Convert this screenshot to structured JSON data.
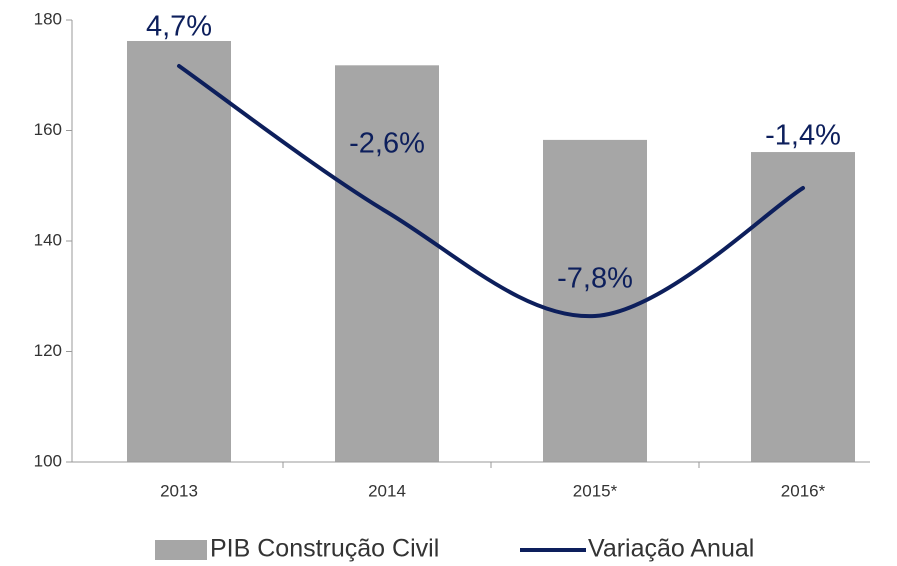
{
  "chart_data": {
    "type": "bar",
    "categories": [
      "2013",
      "2014",
      "2015*",
      "2016*"
    ],
    "series": [
      {
        "name": "PIB Construção Civil",
        "type": "bar",
        "color": "#a6a6a6",
        "values": [
          176.2,
          171.8,
          158.3,
          156.1
        ]
      },
      {
        "name": "Variação Anual",
        "type": "line",
        "axis": "y2",
        "color": "#0d1f5c",
        "values": [
          4.7,
          -2.6,
          -7.8,
          -1.4
        ],
        "value_labels": [
          "4,7%",
          "-2,6%",
          "-7,8%",
          "-1,4%"
        ]
      }
    ],
    "ylim": [
      100,
      180
    ],
    "yticks": [
      100,
      120,
      140,
      160,
      180
    ],
    "y2lim": [
      -15.1,
      7.0
    ],
    "legend": "bottom"
  }
}
